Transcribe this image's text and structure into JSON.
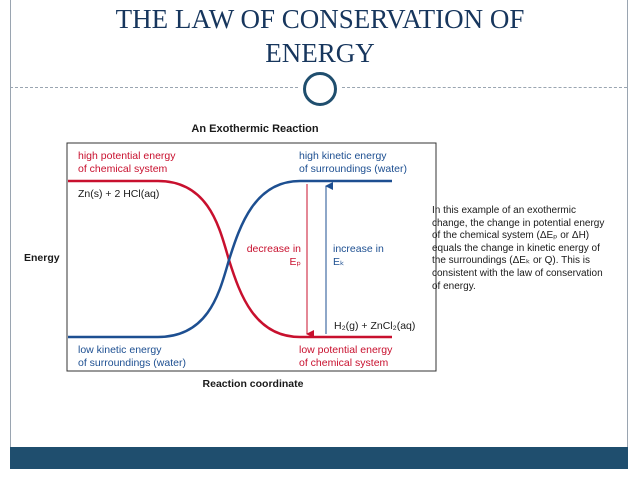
{
  "slide": {
    "title_line1": "THE LAW OF CONSERVATION OF",
    "title_line2": "ENERGY"
  },
  "figure": {
    "title": "An Exothermic Reaction",
    "y_axis_label": "Energy",
    "x_axis_label": "Reaction coordinate",
    "top_left": {
      "line1": "high potential energy",
      "line2": "of chemical system"
    },
    "top_right": {
      "line1": "high kinetic energy",
      "line2": "of surroundings (water)"
    },
    "reactants": "Zn(s) + 2 HCl(aq)",
    "products": "H₂(g) + ZnCl₂(aq)",
    "decrease": {
      "line1": "decrease in",
      "line2": "Eₚ"
    },
    "increase": {
      "line1": "increase in",
      "line2": "Eₖ"
    },
    "bottom_left": {
      "line1": "low kinetic energy",
      "line2": "of surroundings (water)"
    },
    "bottom_right": {
      "line1": "low potential energy",
      "line2": "of chemical system"
    },
    "caption": "In this example of an exothermic change, the change in potential energy of the chemical system (ΔEₚ or ΔH) equals the change in kinetic energy of the surroundings (ΔEₖ or Q). This is consistent with the law of conservation of energy.",
    "colors": {
      "potential": "#c8102e",
      "kinetic": "#1d4f91"
    }
  }
}
